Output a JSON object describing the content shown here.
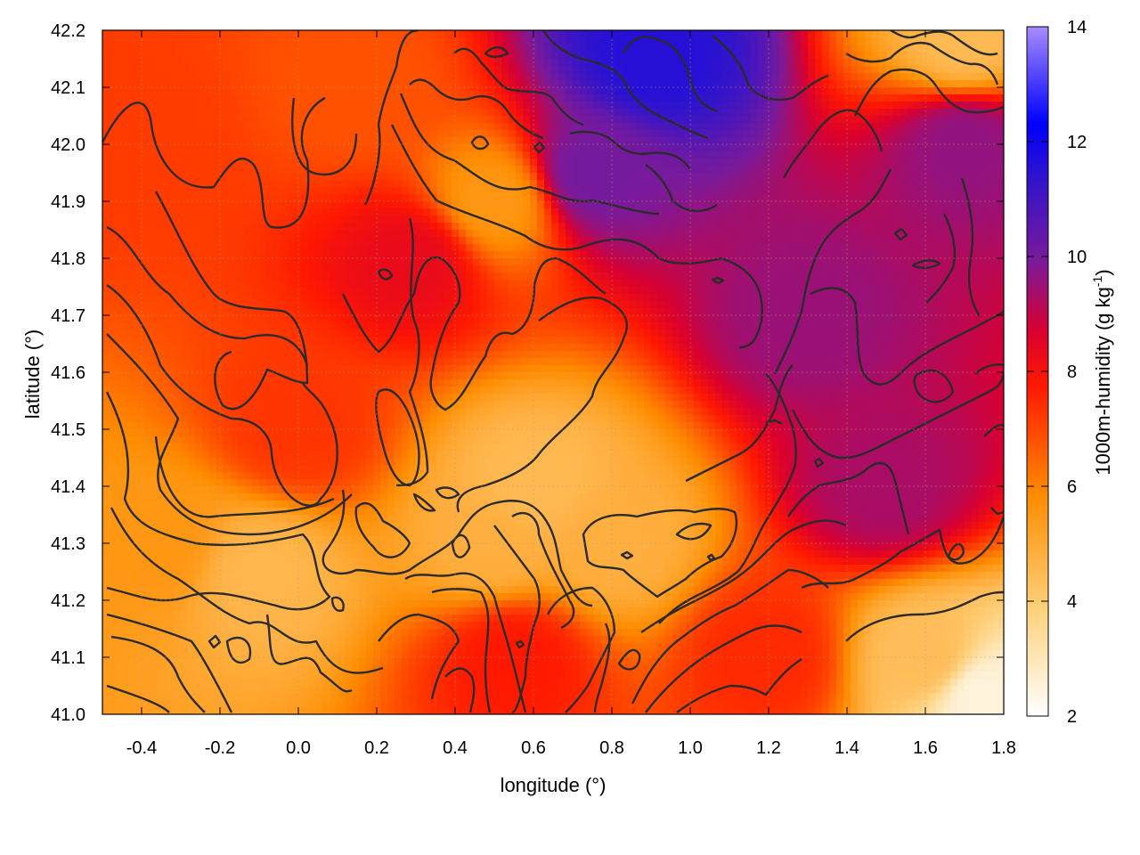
{
  "chart_data": {
    "type": "heatmap",
    "title": "",
    "xlabel": "longitude (°)",
    "ylabel": "latitude (°)",
    "colorbar_label": "1000m-humidity (g kg⁻¹)",
    "colorbar_label_base": "1000m-humidity (g kg",
    "colorbar_label_sup": "-1",
    "colorbar_label_end": ")",
    "xlim": [
      -0.5,
      1.8
    ],
    "ylim": [
      41.0,
      42.2
    ],
    "clim": [
      2,
      14
    ],
    "x_ticks": [
      -0.4,
      -0.2,
      0.0,
      0.2,
      0.4,
      0.6,
      0.8,
      1.0,
      1.2,
      1.4,
      1.6,
      1.8
    ],
    "x_tick_labels": [
      "-0.4",
      "-0.2",
      "0.0",
      "0.2",
      "0.4",
      "0.6",
      "0.8",
      "1.0",
      "1.2",
      "1.4",
      "1.6",
      "1.8"
    ],
    "y_ticks": [
      41.0,
      41.1,
      41.2,
      41.3,
      41.4,
      41.5,
      41.6,
      41.7,
      41.8,
      41.9,
      42.0,
      42.1,
      42.2
    ],
    "y_tick_labels": [
      "41.0",
      "41.1",
      "41.2",
      "41.3",
      "41.4",
      "41.5",
      "41.6",
      "41.7",
      "41.8",
      "41.9",
      "42.0",
      "42.1",
      "42.2"
    ],
    "colorbar_ticks": [
      2,
      4,
      6,
      8,
      10,
      12,
      14
    ],
    "colorbar_tick_labels": [
      "2",
      "4",
      "6",
      "8",
      "10",
      "12",
      "14"
    ],
    "colormap": [
      "#ffffff",
      "#ffd27f",
      "#ff8c00",
      "#ff2000",
      "#e00018",
      "#6a1a9a",
      "#2e10d0",
      "#0000ff",
      "#a98bff"
    ],
    "grid": true,
    "contours": true,
    "contour_color": "#2b2b2b",
    "field_description_points": [
      {
        "lon": -0.35,
        "lat": 41.3,
        "value": 5.5
      },
      {
        "lon": -0.1,
        "lat": 41.25,
        "value": 4.6
      },
      {
        "lon": 0.0,
        "lat": 41.5,
        "value": 7.3
      },
      {
        "lon": 0.3,
        "lat": 41.8,
        "value": 8.3
      },
      {
        "lon": 0.5,
        "lat": 41.3,
        "value": 4.8
      },
      {
        "lon": 0.6,
        "lat": 41.4,
        "value": 4.5
      },
      {
        "lon": 0.8,
        "lat": 41.3,
        "value": 4.8
      },
      {
        "lon": 0.75,
        "lat": 41.95,
        "value": 10.0
      },
      {
        "lon": 0.5,
        "lat": 41.9,
        "value": 5.5
      },
      {
        "lon": 0.9,
        "lat": 42.15,
        "value": 11.5
      },
      {
        "lon": 1.3,
        "lat": 41.7,
        "value": 9.5
      },
      {
        "lon": 1.5,
        "lat": 41.4,
        "value": 9.3
      },
      {
        "lon": 1.7,
        "lat": 42.0,
        "value": 9.6
      },
      {
        "lon": 1.7,
        "lat": 42.18,
        "value": 4.5
      },
      {
        "lon": 1.6,
        "lat": 41.1,
        "value": 4.4
      },
      {
        "lon": 1.75,
        "lat": 41.03,
        "value": 2.5
      },
      {
        "lon": 1.2,
        "lat": 41.1,
        "value": 7.5
      },
      {
        "lon": 0.55,
        "lat": 41.1,
        "value": 7.8
      },
      {
        "lon": -0.4,
        "lat": 42.0,
        "value": 7.2
      },
      {
        "lon": 0.15,
        "lat": 42.1,
        "value": 6.8
      }
    ]
  }
}
